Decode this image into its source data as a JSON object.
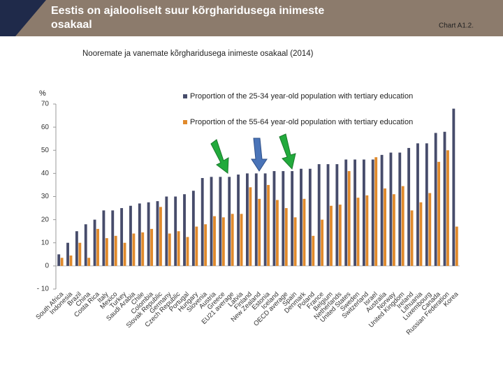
{
  "chart_data": {
    "type": "bar",
    "title": "Eestis on ajalooliselt suur kõrgharidusega inimeste osakaal",
    "chart_label": "Chart A1.2.",
    "subtitle": "Nooremate ja vanemate kõrgharidusega inimeste osakaal (2014)",
    "y_label": "%",
    "categories": [
      "South Africa",
      "Indonesia",
      "Brazil",
      "China",
      "Costa Rica",
      "Italy",
      "Mexico",
      "Turkey",
      "Saudi Arabia",
      "Chile",
      "Colombia",
      "Slovak Republic",
      "Germany",
      "Czech Republic",
      "Portugal",
      "Hungary",
      "Slovenia",
      "Austria",
      "Greece",
      "EU21 average",
      "Latvia",
      "Finland",
      "New Zealand",
      "Estonia",
      "Iceland",
      "OECD average",
      "Spain",
      "Denmark",
      "Poland",
      "France",
      "Belgium",
      "Netherlands",
      "United States",
      "Sweden",
      "Switzerland",
      "Israel",
      "Australia",
      "Norway",
      "United Kingdom",
      "Ireland",
      "Lithuania",
      "Luxembourg",
      "Canada",
      "Russian Federation",
      "Korea"
    ],
    "series": [
      {
        "name": "Proportion of the 25-34 year-old population with tertiary education",
        "color": "#474c6b",
        "values": [
          5,
          10,
          15,
          18,
          20,
          24,
          24,
          25,
          26,
          27,
          27.5,
          28,
          30,
          30,
          31,
          32.5,
          38,
          38.5,
          38.5,
          38.5,
          39.5,
          40,
          40,
          40,
          41,
          41,
          41,
          42,
          42,
          44,
          44,
          44,
          46,
          46,
          46,
          46,
          48,
          49,
          49,
          51,
          53,
          53,
          57.5,
          58,
          68
        ]
      },
      {
        "name": "Proportion of the 55-64 year-old population with tertiary education",
        "color": "#e08a2c",
        "values": [
          3.5,
          4.5,
          10,
          3.5,
          16,
          12,
          13,
          10,
          14,
          14.5,
          16,
          25.5,
          14,
          15,
          12.5,
          17,
          18,
          21.5,
          21,
          22.5,
          22.5,
          34,
          29,
          35,
          28.5,
          25,
          21,
          29,
          13,
          20,
          26,
          26.5,
          41,
          29.5,
          30.5,
          47,
          33.5,
          31,
          34.5,
          24,
          27.5,
          31.5,
          45,
          50,
          17
        ]
      }
    ],
    "ylim": [
      -10,
      70
    ],
    "yticks": [
      {
        "value": -10,
        "label": "- 10"
      },
      0,
      10,
      20,
      30,
      40,
      50,
      60,
      70
    ],
    "grid": false
  }
}
